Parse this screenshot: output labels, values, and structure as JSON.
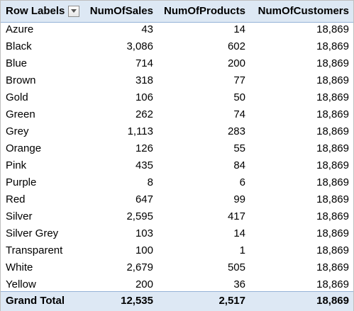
{
  "table": {
    "headers": {
      "row_labels": "Row Labels",
      "sales": "NumOfSales",
      "products": "NumOfProducts",
      "customers": "NumOfCustomers"
    },
    "rows": [
      {
        "label": "Azure",
        "sales": "43",
        "products": "14",
        "customers": "18,869"
      },
      {
        "label": "Black",
        "sales": "3,086",
        "products": "602",
        "customers": "18,869"
      },
      {
        "label": "Blue",
        "sales": "714",
        "products": "200",
        "customers": "18,869"
      },
      {
        "label": "Brown",
        "sales": "318",
        "products": "77",
        "customers": "18,869"
      },
      {
        "label": "Gold",
        "sales": "106",
        "products": "50",
        "customers": "18,869"
      },
      {
        "label": "Green",
        "sales": "262",
        "products": "74",
        "customers": "18,869"
      },
      {
        "label": "Grey",
        "sales": "1,113",
        "products": "283",
        "customers": "18,869"
      },
      {
        "label": "Orange",
        "sales": "126",
        "products": "55",
        "customers": "18,869"
      },
      {
        "label": "Pink",
        "sales": "435",
        "products": "84",
        "customers": "18,869"
      },
      {
        "label": "Purple",
        "sales": "8",
        "products": "6",
        "customers": "18,869"
      },
      {
        "label": "Red",
        "sales": "647",
        "products": "99",
        "customers": "18,869"
      },
      {
        "label": "Silver",
        "sales": "2,595",
        "products": "417",
        "customers": "18,869"
      },
      {
        "label": "Silver Grey",
        "sales": "103",
        "products": "14",
        "customers": "18,869"
      },
      {
        "label": "Transparent",
        "sales": "100",
        "products": "1",
        "customers": "18,869"
      },
      {
        "label": "White",
        "sales": "2,679",
        "products": "505",
        "customers": "18,869"
      },
      {
        "label": "Yellow",
        "sales": "200",
        "products": "36",
        "customers": "18,869"
      }
    ],
    "total": {
      "label": "Grand Total",
      "sales": "12,535",
      "products": "2,517",
      "customers": "18,869"
    }
  },
  "icons": {
    "filter": "filter-dropdown-icon"
  },
  "colors": {
    "header_bg": "#dde8f4",
    "header_border": "#95b3d7"
  }
}
